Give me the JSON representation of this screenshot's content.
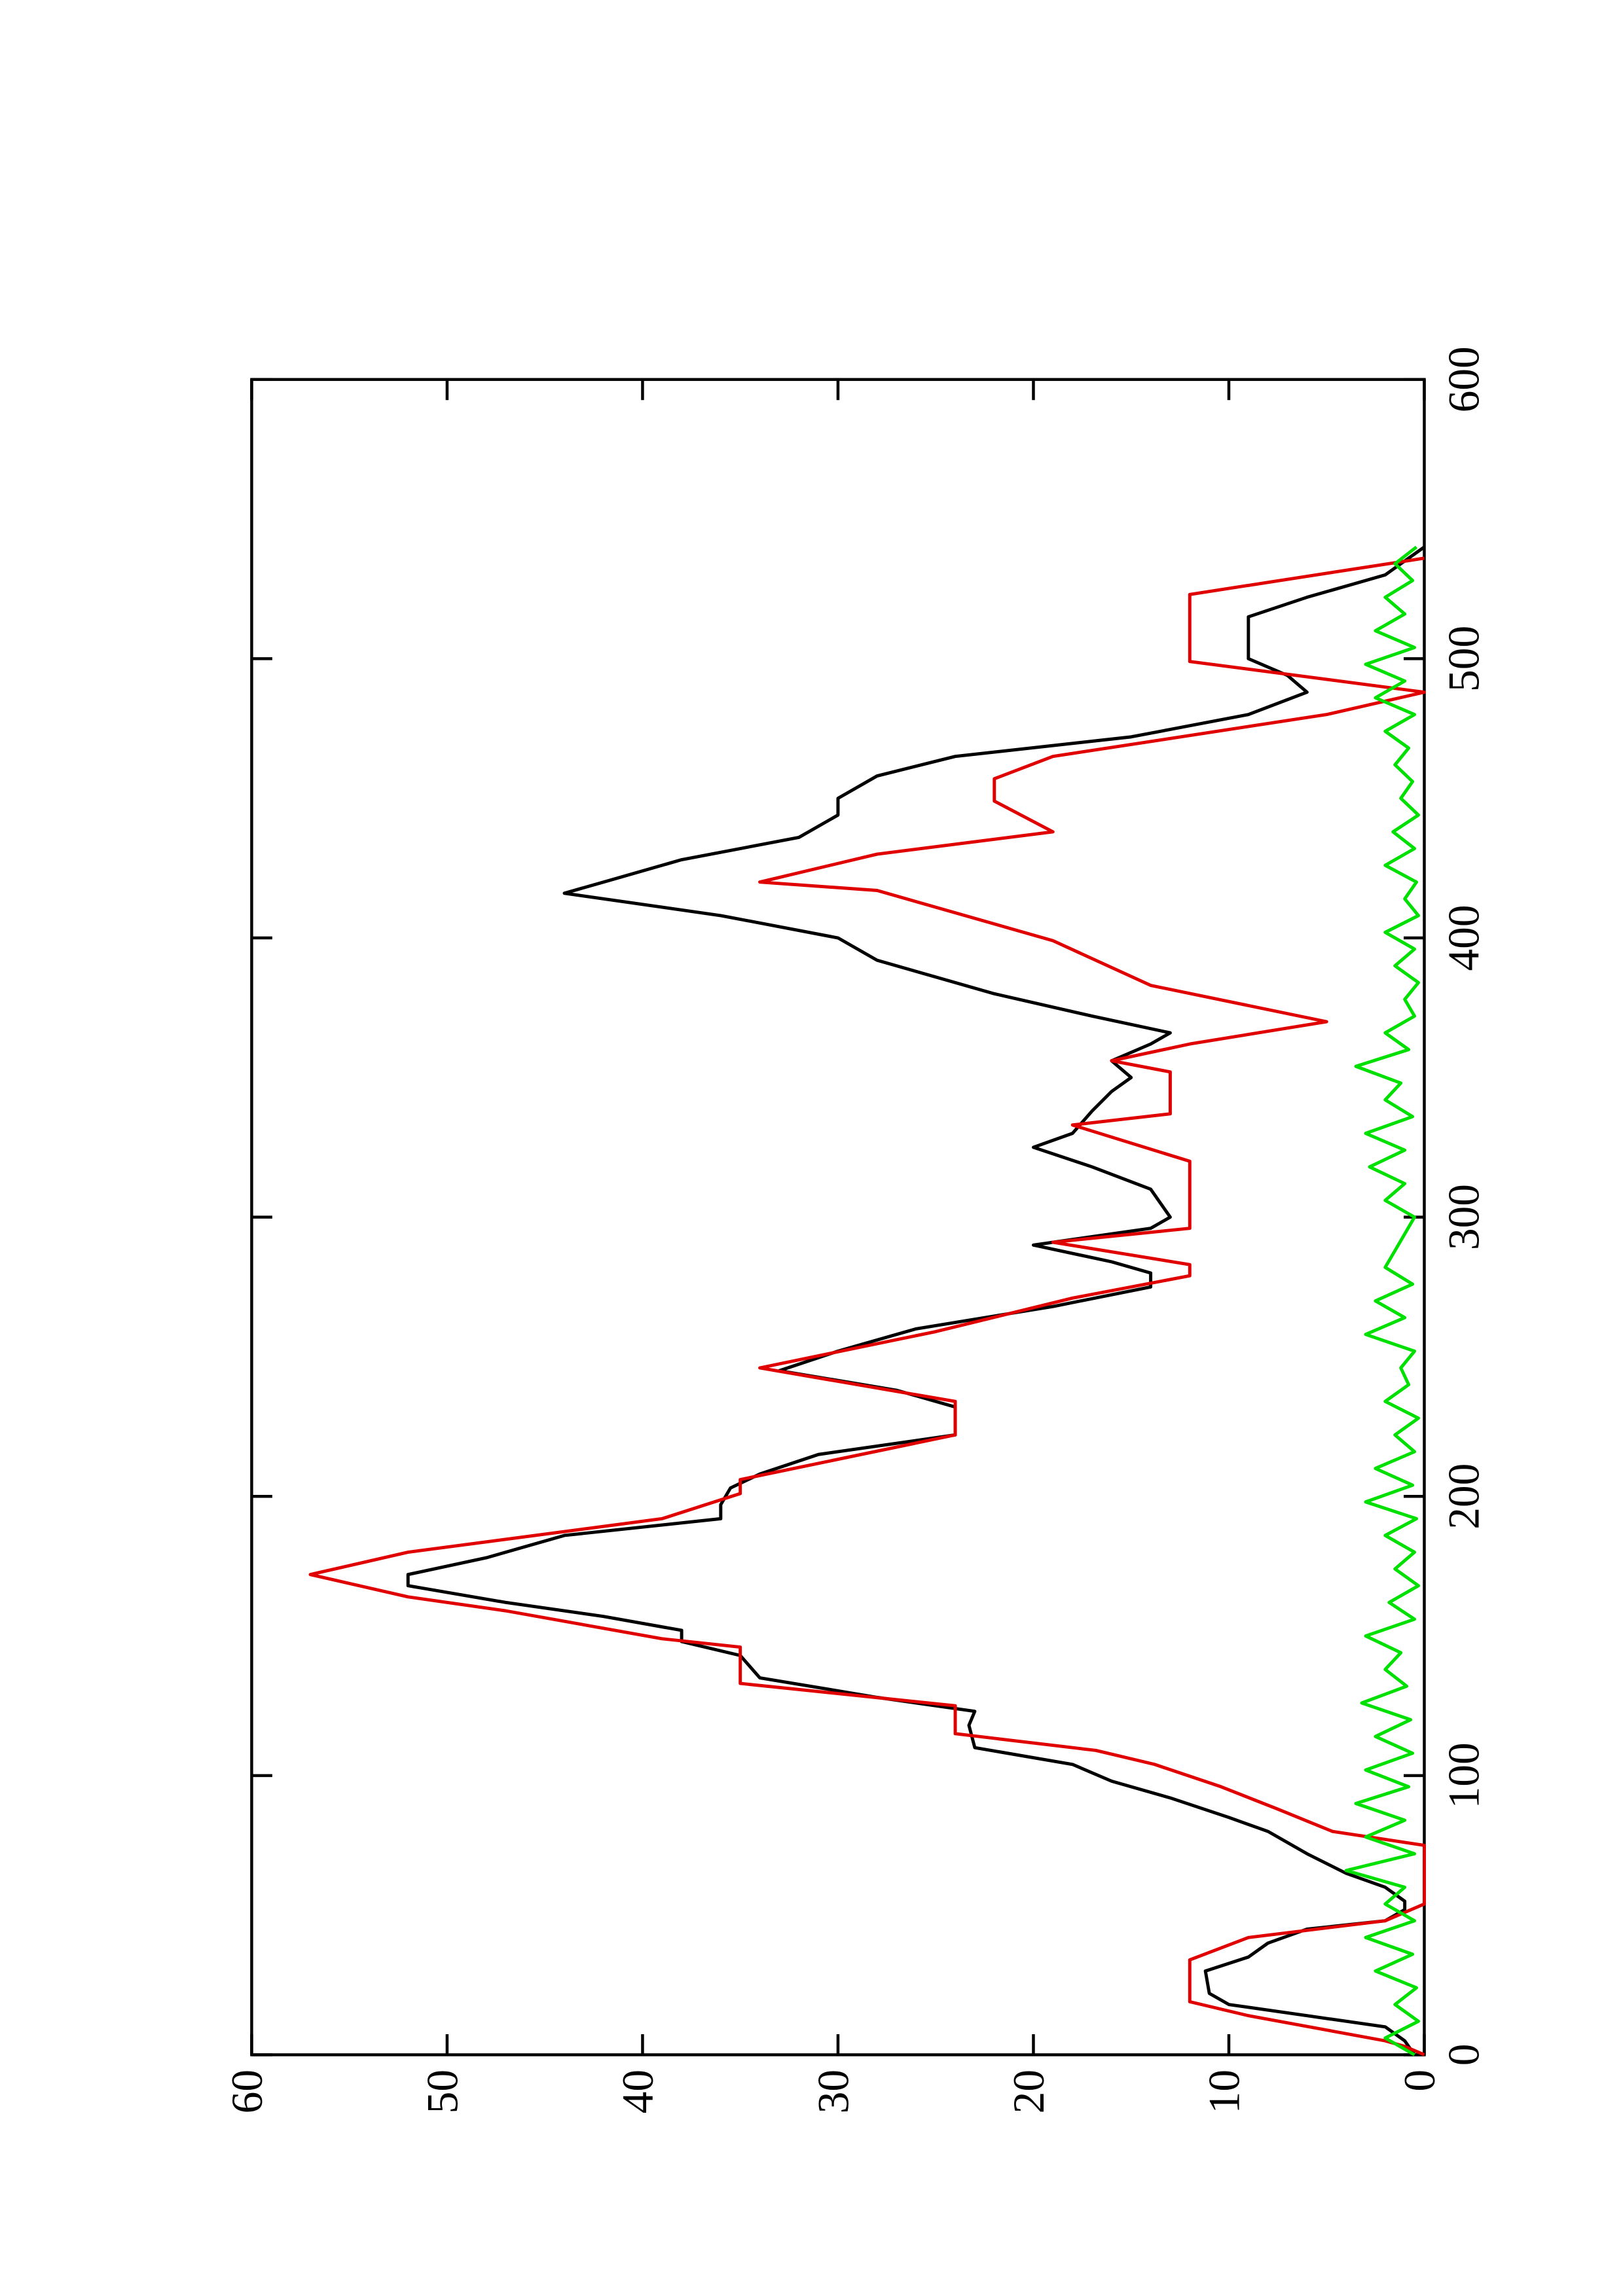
{
  "chart_data": {
    "type": "line",
    "xlim": [
      0,
      600
    ],
    "ylim": [
      0,
      60
    ],
    "xticks": [
      0,
      100,
      200,
      300,
      400,
      500,
      600
    ],
    "yticks": [
      0,
      10,
      20,
      30,
      40,
      50,
      60
    ],
    "series": [
      {
        "color": "#000000",
        "x": [
          0,
          5,
          10,
          14,
          18,
          22,
          30,
          35,
          40,
          45,
          48,
          52,
          55,
          60,
          65,
          72,
          80,
          85,
          92,
          98,
          104,
          110,
          118,
          123,
          128,
          135,
          143,
          148,
          152,
          157,
          162,
          168,
          172,
          178,
          186,
          192,
          197,
          203,
          208,
          215,
          222,
          232,
          238,
          245,
          252,
          260,
          268,
          275,
          280,
          284,
          290,
          296,
          300,
          310,
          318,
          325,
          330,
          338,
          345,
          350,
          356,
          362,
          366,
          372,
          380,
          386,
          392,
          400,
          408,
          416,
          420,
          428,
          436,
          444,
          450,
          458,
          465,
          472,
          480,
          488,
          494,
          500,
          508,
          515,
          522,
          530,
          540
        ],
        "values": [
          0.5,
          1,
          2,
          6,
          10,
          11,
          11.2,
          9,
          8,
          6,
          2,
          1,
          1,
          2,
          4,
          6,
          8,
          10,
          13,
          16,
          18,
          23,
          23.3,
          23,
          28,
          34,
          35,
          38,
          38,
          42,
          47,
          52,
          52,
          48,
          44,
          36,
          36,
          35.5,
          34,
          31,
          24,
          24,
          27,
          33,
          30,
          26,
          19,
          14,
          14,
          16,
          20,
          14,
          13,
          14,
          17,
          20,
          18,
          17,
          16,
          15,
          16,
          14,
          13,
          17,
          22,
          25,
          28,
          30,
          36,
          44,
          42,
          38,
          32,
          30,
          30,
          28,
          24,
          15,
          9,
          6,
          7,
          9,
          9,
          9,
          6,
          2,
          0
        ]
      },
      {
        "color": "#e00000",
        "x": [
          0,
          3,
          5,
          14,
          19,
          34,
          42,
          48,
          54,
          75,
          80,
          88,
          96,
          104,
          109,
          115,
          125,
          133,
          146,
          149,
          159,
          164,
          172,
          180,
          192,
          201,
          206,
          222,
          234,
          246,
          259,
          271,
          279,
          283,
          291,
          296,
          320,
          333,
          337,
          352,
          356,
          362,
          370,
          383,
          399,
          417,
          420,
          430,
          438,
          449,
          457,
          465,
          480,
          488,
          499,
          523,
          536
        ],
        "values": [
          0,
          1,
          2,
          9,
          12,
          12,
          9,
          2,
          0,
          0,
          4.7,
          7.5,
          10.4,
          13.8,
          16.8,
          24,
          24,
          35,
          35,
          39,
          47,
          52,
          57,
          52,
          39,
          35,
          35,
          24,
          24,
          34,
          25,
          18,
          12,
          12,
          19,
          12,
          12,
          18,
          13,
          13,
          16,
          12,
          5,
          14,
          19,
          28,
          34,
          28,
          19,
          22,
          22,
          19,
          5,
          0,
          12,
          12,
          0
        ]
      },
      {
        "color": "#00e000",
        "x": [
          0,
          6,
          12,
          18,
          24,
          30,
          36,
          42,
          48,
          54,
          60,
          66,
          72,
          78,
          84,
          90,
          96,
          102,
          108,
          114,
          120,
          126,
          132,
          138,
          144,
          150,
          156,
          162,
          168,
          174,
          180,
          186,
          192,
          198,
          204,
          210,
          216,
          222,
          228,
          234,
          240,
          246,
          252,
          258,
          264,
          270,
          276,
          282,
          288,
          294,
          300,
          306,
          312,
          318,
          324,
          330,
          336,
          342,
          348,
          354,
          360,
          366,
          372,
          378,
          384,
          390,
          396,
          402,
          408,
          414,
          420,
          426,
          432,
          438,
          444,
          450,
          456,
          462,
          468,
          474,
          480,
          486,
          492,
          498,
          504,
          510,
          516,
          522,
          528,
          534,
          540
        ],
        "values": [
          0.5,
          2,
          0.3,
          1.5,
          0.4,
          2.5,
          0.6,
          3,
          0.5,
          2,
          1,
          4,
          0.5,
          3,
          1,
          3.5,
          0.8,
          3,
          0.6,
          2.5,
          0.7,
          3.2,
          0.9,
          2,
          1.2,
          3,
          0.5,
          1.8,
          0.3,
          1.5,
          0.5,
          2,
          0.4,
          3,
          0.6,
          2.5,
          0.5,
          1.5,
          0.3,
          2,
          0.8,
          1.2,
          0.5,
          3,
          1,
          2.5,
          0.6,
          2,
          1.5,
          1,
          0.5,
          2,
          1,
          2.8,
          1,
          3,
          0.6,
          2,
          1.2,
          3.5,
          0.8,
          2,
          0.5,
          1,
          0.3,
          1.5,
          0.5,
          2,
          0.3,
          1,
          0.4,
          2,
          0.5,
          1.6,
          0.3,
          1.2,
          0.6,
          1.5,
          0.8,
          2,
          0.5,
          2.5,
          1,
          3,
          0.5,
          2.5,
          1,
          2,
          0.6,
          1.5,
          0.4
        ]
      }
    ]
  }
}
